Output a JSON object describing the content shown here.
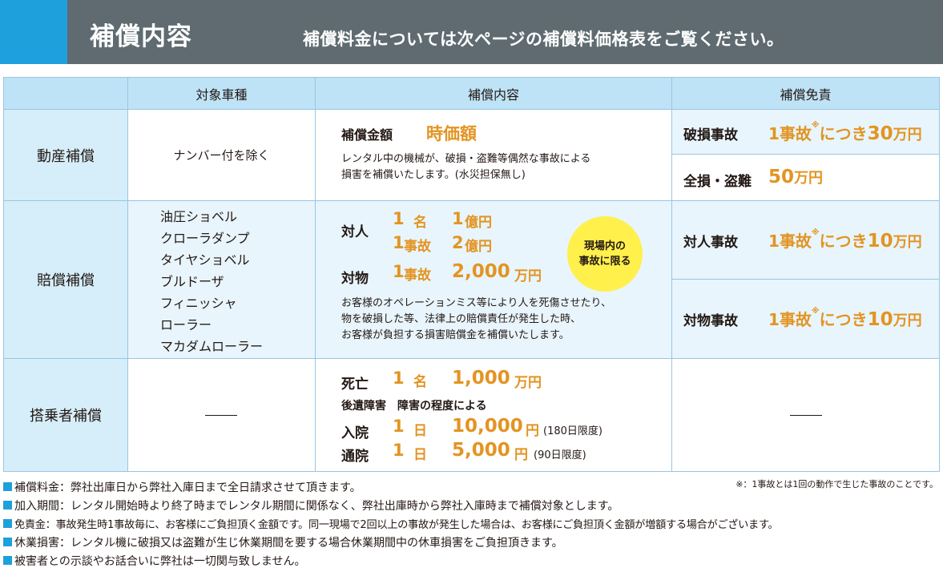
{
  "banner": {
    "title": "補償内容",
    "subtitle": "補償料金については次ページの補償料価格表をご覧ください。"
  },
  "table": {
    "headers": [
      "対象車種",
      "補償内容",
      "補償免責"
    ],
    "property": {
      "label": "動産補償",
      "vehicles": "ナンバー付を除く",
      "amount_label": "補償金額",
      "amount_value": "時価額",
      "desc": [
        "レンタル中の機械が、破損・盗難等偶然な事故による",
        "損害を補償いたします。(水災担保無し)"
      ],
      "deductibles": [
        {
          "label": "破損事故",
          "value": "1事故",
          "note": "※",
          "per": "につき",
          "amount": "30",
          "unit": "万円"
        },
        {
          "label": "全損・盗難",
          "amount": "50",
          "unit": "万円"
        }
      ]
    },
    "liability": {
      "label": "賠償補償",
      "vehicles": [
        "油圧ショベル",
        "クローラダンプ",
        "タイヤショベル",
        "ブルドーザ",
        "フィニッシャ",
        "ローラー",
        "マカダムローラー"
      ],
      "person_label": "対人",
      "person_rows": [
        {
          "count": "1",
          "unit": "名",
          "amount": "1",
          "amount_unit": "億円"
        },
        {
          "count": "1",
          "unit": "事故",
          "amount": "2",
          "amount_unit": "億円"
        }
      ],
      "property_label": "対物",
      "property_count": "1",
      "property_unit": "事故",
      "property_amount": "2,000",
      "property_amount_unit": "万円",
      "badge": [
        "現場内の",
        "事故に限る"
      ],
      "desc": [
        "お客様のオペレーションミス等により人を死傷させたり、",
        "物を破損した等、法律上の賠償責任が発生した時、",
        "お客様が負担する損害賠償金を補償いたします。"
      ],
      "deductibles": [
        {
          "label": "対人事故",
          "value": "1事故",
          "note": "※",
          "per": "につき",
          "amount": "10",
          "unit": "万円"
        },
        {
          "label": "対物事故",
          "value": "1事故",
          "note": "※",
          "per": "につき",
          "amount": "10",
          "unit": "万円"
        }
      ]
    },
    "passenger": {
      "label": "搭乗者補償",
      "death_label": "死亡",
      "death_count": "1",
      "death_unit": "名",
      "death_amount": "1,000",
      "death_amount_unit": "万円",
      "aftereffect": "後遺障害　障害の程度による",
      "hospital_label": "入院",
      "hospital_count": "1",
      "hospital_unit": "日",
      "hospital_amount": "10,000",
      "hospital_amount_unit": "円",
      "hospital_limit": "(180日限度)",
      "outpatient_label": "通院",
      "outpatient_count": "1",
      "outpatient_unit": "日",
      "outpatient_amount": "5,000",
      "outpatient_amount_unit": "円",
      "outpatient_limit": "(90日限度)"
    }
  },
  "notes": [
    "補償料金：弊社出庫日から弊社入庫日まで全日請求させて頂きます。",
    "加入期間：レンタル開始時より終了時までレンタル期間に関係なく、弊社出庫時から弊社入庫時まで補償対象とします。",
    "免責金：事故発生時1事故毎に、お客様にご負担頂く金額です。同一現場で2回以上の事故が発生した場合は、お客様にご負担頂く金額が増額する場合がございます。",
    "休業損害：レンタル機に破損又は盗難が生じ休業期間を要する場合休業期間中の休車損害をご負担頂きます。",
    "被害者との示談やお話合いに弊社は一切関与致しません。"
  ],
  "footnote": "※：1事故とは1回の動作で生じた事故のことです。",
  "colors": {
    "accent": "#1ea0dc",
    "banner": "#5f6b70",
    "highlight": "#e39422",
    "badge": "#fff04b"
  }
}
